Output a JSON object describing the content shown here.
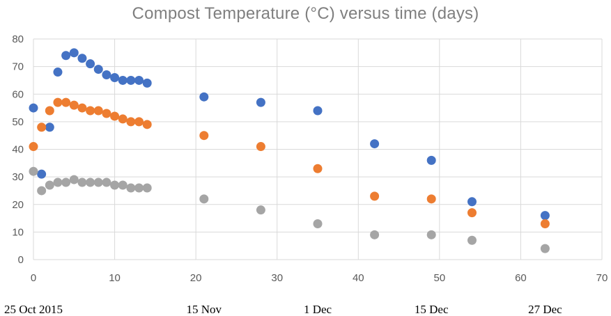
{
  "chart_data": {
    "type": "scatter",
    "title": "Compost Temperature (°C) versus time (days)",
    "xlabel": "",
    "ylabel": "",
    "xlim": [
      0,
      70
    ],
    "ylim": [
      0,
      80
    ],
    "x_ticks": [
      0,
      10,
      20,
      30,
      40,
      50,
      60,
      70
    ],
    "y_ticks": [
      0,
      10,
      20,
      30,
      40,
      50,
      60,
      70,
      80
    ],
    "grid": true,
    "legend": "none",
    "date_labels": [
      {
        "x": 0,
        "label": "25 Oct 2015"
      },
      {
        "x": 21,
        "label": "15 Nov"
      },
      {
        "x": 35,
        "label": "1 Dec"
      },
      {
        "x": 49,
        "label": "15 Dec"
      },
      {
        "x": 63,
        "label": "27 Dec"
      }
    ],
    "series": [
      {
        "color": "#4472c4",
        "points": [
          [
            0,
            55
          ],
          [
            1,
            31
          ],
          [
            2,
            48
          ],
          [
            3,
            68
          ],
          [
            4,
            74
          ],
          [
            5,
            75
          ],
          [
            6,
            73
          ],
          [
            7,
            71
          ],
          [
            8,
            69
          ],
          [
            9,
            67
          ],
          [
            10,
            66
          ],
          [
            11,
            65
          ],
          [
            12,
            65
          ],
          [
            13,
            65
          ],
          [
            14,
            64
          ],
          [
            21,
            59
          ],
          [
            28,
            57
          ],
          [
            35,
            54
          ],
          [
            42,
            42
          ],
          [
            49,
            36
          ],
          [
            54,
            21
          ],
          [
            63,
            16
          ]
        ]
      },
      {
        "color": "#ed7d31",
        "points": [
          [
            0,
            41
          ],
          [
            1,
            48
          ],
          [
            2,
            54
          ],
          [
            3,
            57
          ],
          [
            4,
            57
          ],
          [
            5,
            56
          ],
          [
            6,
            55
          ],
          [
            7,
            54
          ],
          [
            8,
            54
          ],
          [
            9,
            53
          ],
          [
            10,
            52
          ],
          [
            11,
            51
          ],
          [
            12,
            50
          ],
          [
            13,
            50
          ],
          [
            14,
            49
          ],
          [
            21,
            45
          ],
          [
            28,
            41
          ],
          [
            35,
            33
          ],
          [
            42,
            23
          ],
          [
            49,
            22
          ],
          [
            54,
            17
          ],
          [
            63,
            13
          ]
        ]
      },
      {
        "color": "#a5a5a5",
        "points": [
          [
            0,
            32
          ],
          [
            1,
            25
          ],
          [
            2,
            27
          ],
          [
            3,
            28
          ],
          [
            4,
            28
          ],
          [
            5,
            29
          ],
          [
            6,
            28
          ],
          [
            7,
            28
          ],
          [
            8,
            28
          ],
          [
            9,
            28
          ],
          [
            10,
            27
          ],
          [
            11,
            27
          ],
          [
            12,
            26
          ],
          [
            13,
            26
          ],
          [
            14,
            26
          ],
          [
            21,
            22
          ],
          [
            28,
            18
          ],
          [
            35,
            13
          ],
          [
            42,
            9
          ],
          [
            49,
            9
          ],
          [
            54,
            7
          ],
          [
            63,
            4
          ]
        ]
      }
    ]
  }
}
